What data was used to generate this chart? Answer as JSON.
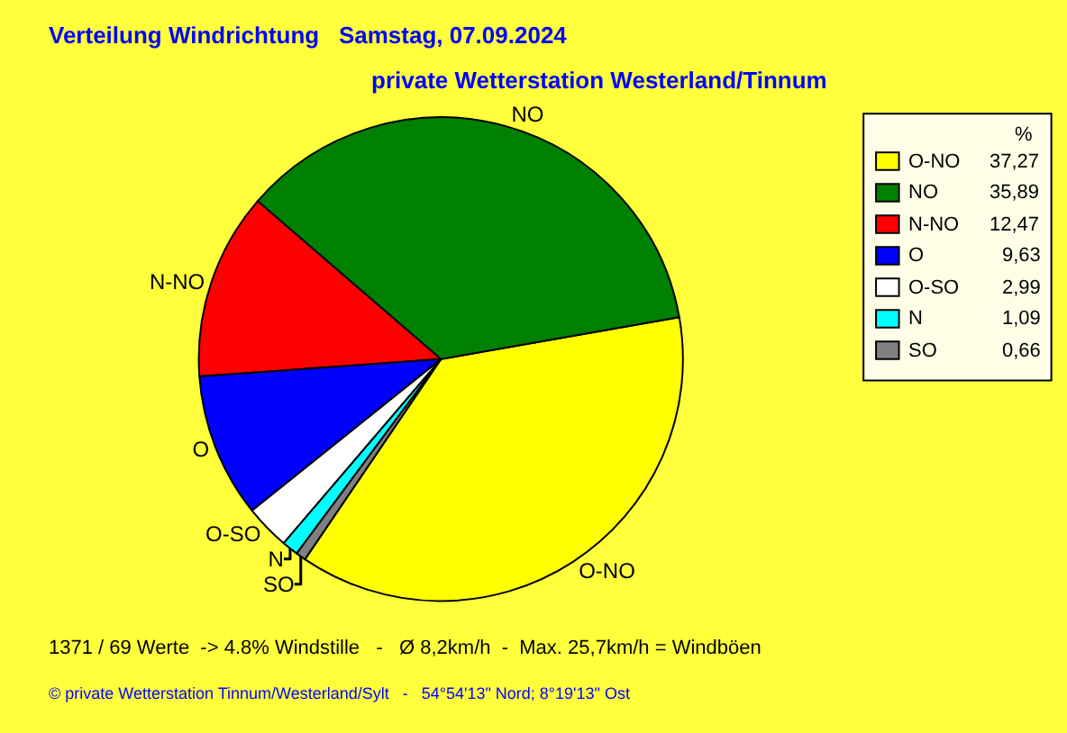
{
  "chart_data": {
    "type": "pie",
    "title": "Verteilung Windrichtung   Samstag, 07.09.2024",
    "subtitle": "private Wetterstation Westerland/Tinnum",
    "categories": [
      "O-NO",
      "NO",
      "N-NO",
      "O",
      "O-SO",
      "N",
      "SO"
    ],
    "values": [
      37.27,
      35.89,
      12.47,
      9.63,
      2.99,
      1.09,
      0.66
    ],
    "colors": [
      "#ffff00",
      "#008000",
      "#ff0000",
      "#0000ff",
      "#ffffff",
      "#00ffff",
      "#808080"
    ],
    "value_labels": [
      "37,27",
      "35,89",
      "12,47",
      "9,63",
      "2,99",
      "1,09",
      "0,66"
    ],
    "legend": "right",
    "legend_title": "%",
    "annotations": [
      "1371 / 69 Werte  -> 4.8% Windstille   -   Ø 8,2km/h  -  Max. 25,7km/h = Windböen",
      "© private Wetterstation Tinnum/Westerland/Sylt   -   54°54'13\" Nord; 8°19'13\" Ost"
    ]
  }
}
